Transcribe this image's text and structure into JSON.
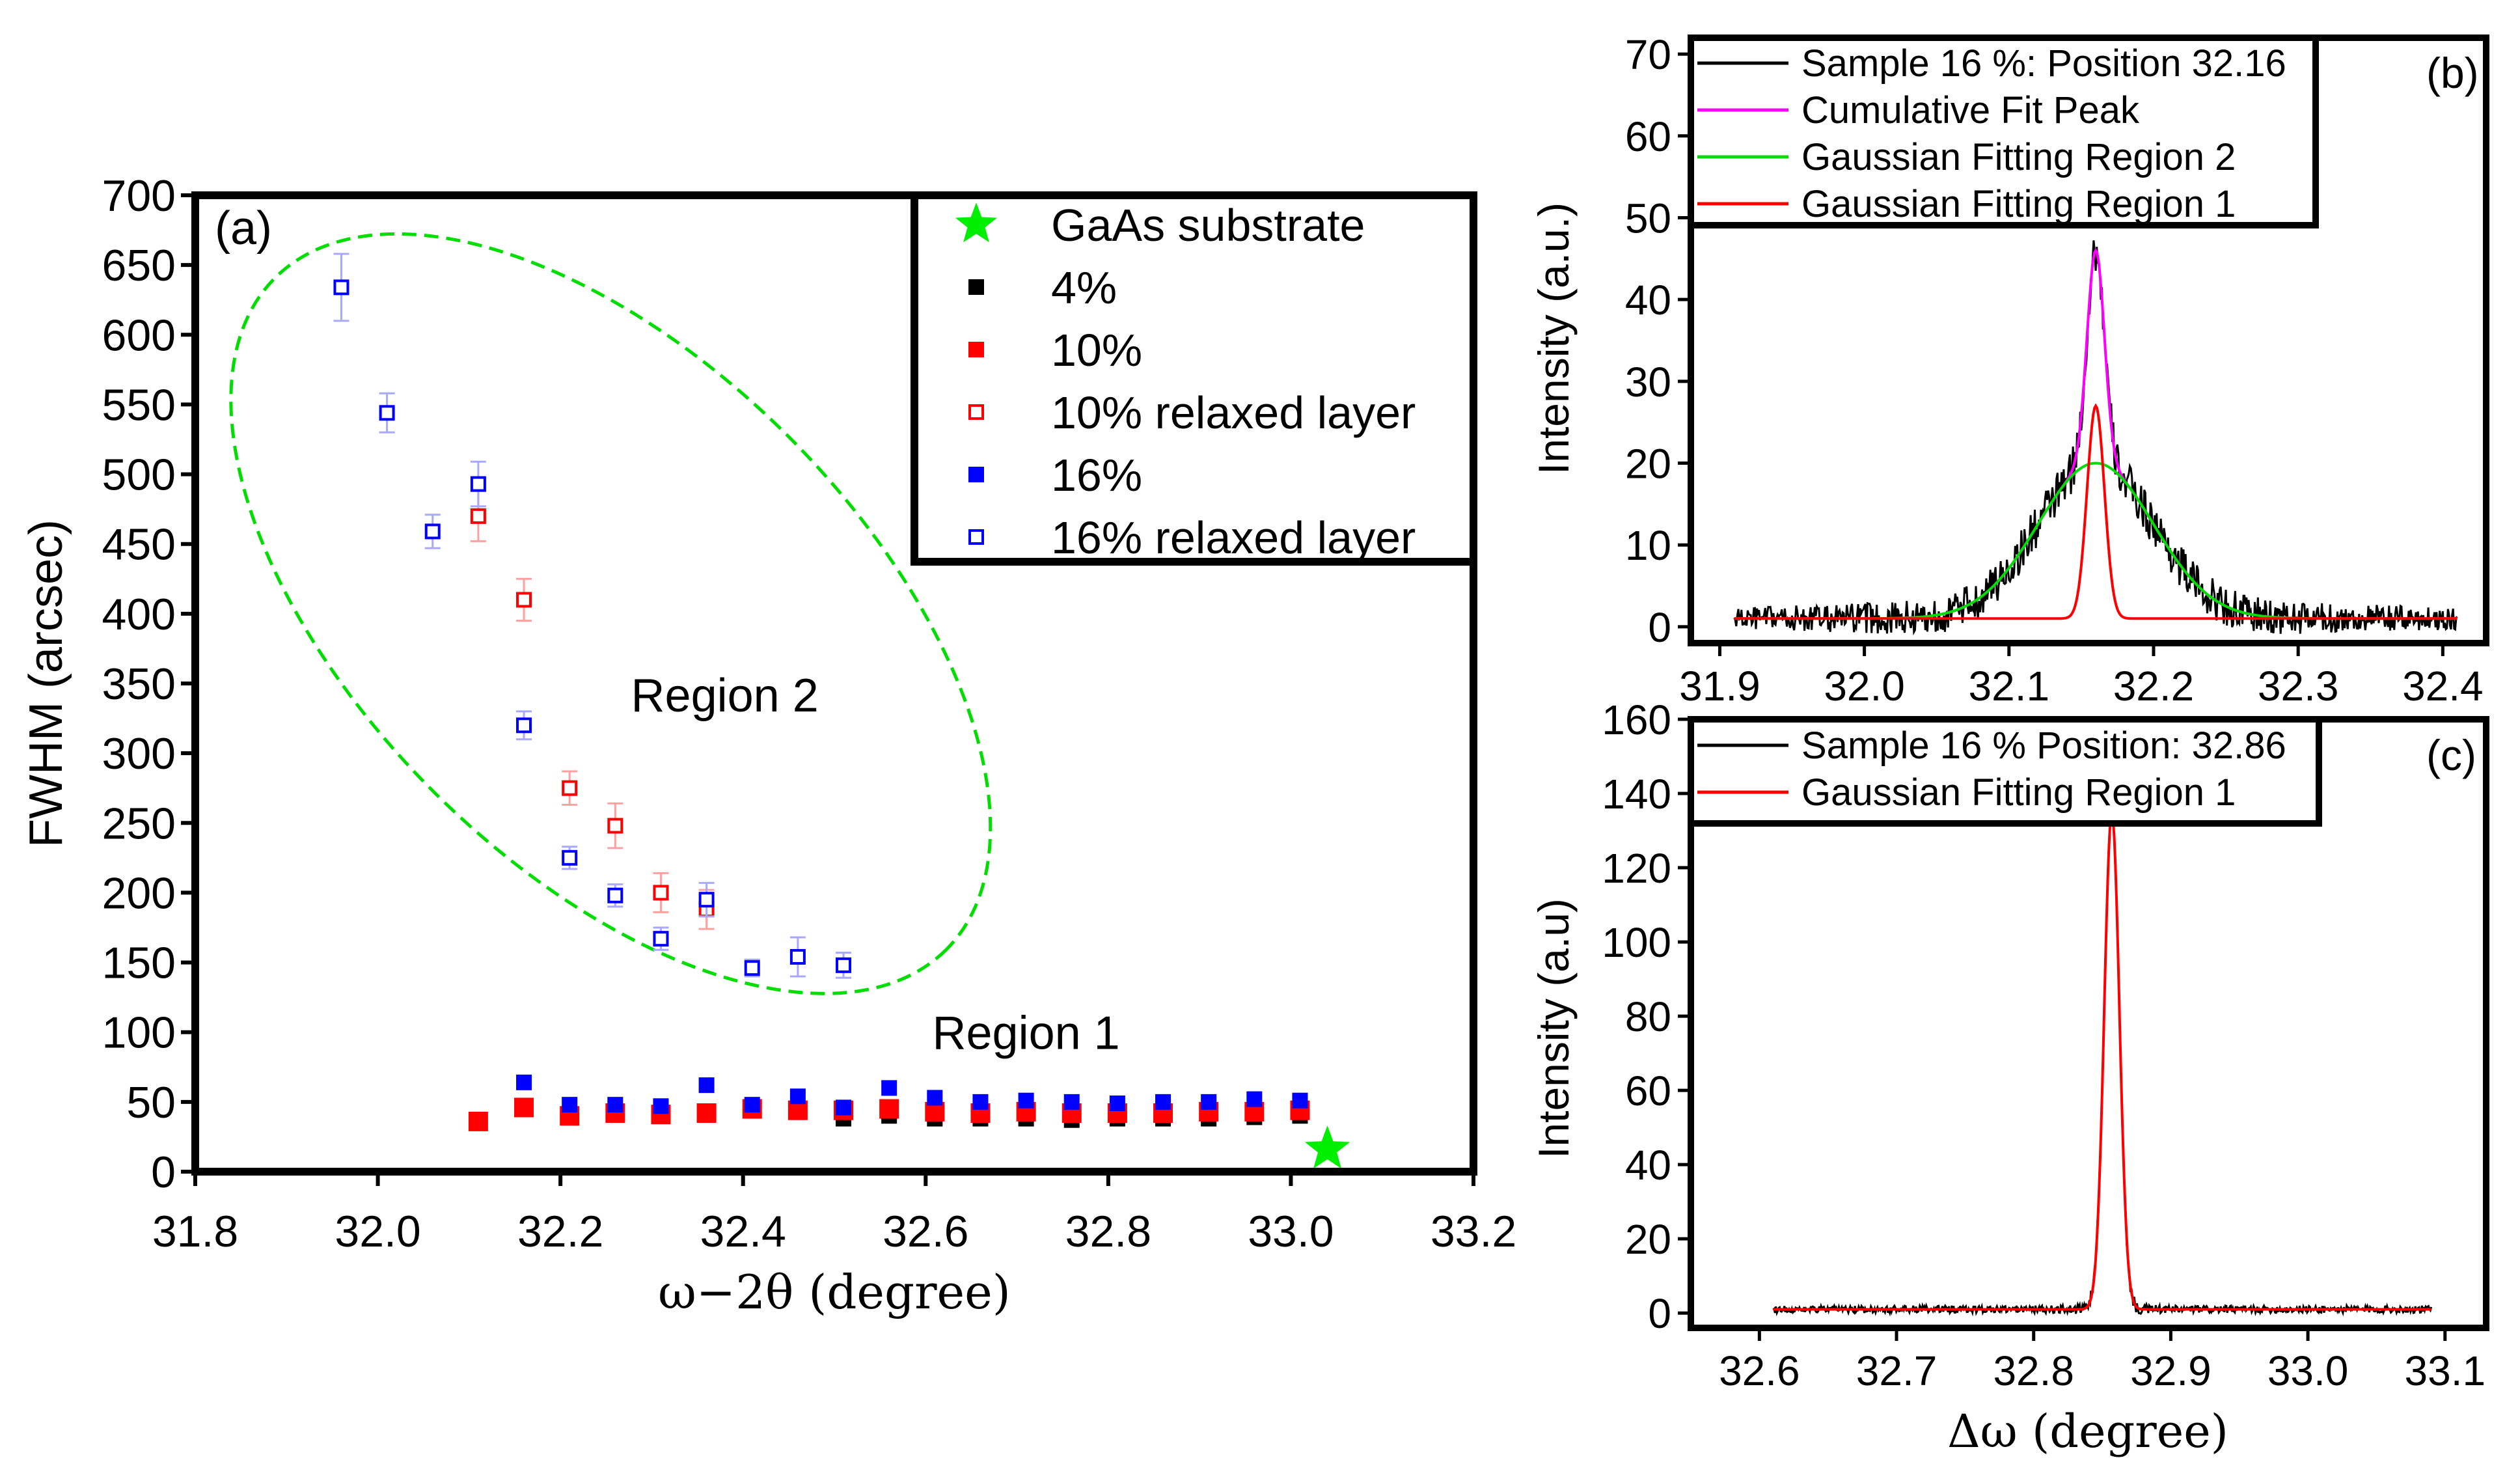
{
  "colors": {
    "black": "#000000",
    "red": "#ff0000",
    "blue": "#0000ff",
    "green": "#00ff00",
    "magenta": "#ff00ff",
    "dashed_green": "#00dd00"
  },
  "chart_data": [
    {
      "id": "a",
      "type": "scatter",
      "panel_label": "(a)",
      "xlabel": "ω−2θ (degree)",
      "ylabel": "FWHM (arcsec)",
      "xlim": [
        31.8,
        33.2
      ],
      "ylim": [
        0,
        700
      ],
      "x_ticks": [
        31.8,
        32.0,
        32.2,
        32.4,
        32.6,
        32.8,
        33.0,
        33.2
      ],
      "x_tick_labels": [
        "31.8",
        "32.0",
        "32.2",
        "32.4",
        "32.6",
        "32.8",
        "33.0",
        "33.2"
      ],
      "y_ticks": [
        0,
        50,
        100,
        150,
        200,
        250,
        300,
        350,
        400,
        450,
        500,
        550,
        600,
        650,
        700
      ],
      "y_tick_labels": [
        "0",
        "50",
        "100",
        "150",
        "200",
        "250",
        "300",
        "350",
        "400",
        "450",
        "500",
        "550",
        "600",
        "650",
        "700"
      ],
      "annotations": [
        {
          "text": "Region 2",
          "x": 32.38,
          "y": 330
        },
        {
          "text": "Region 1",
          "x": 32.71,
          "y": 88
        }
      ],
      "region2_ellipse": {
        "cx": 32.255,
        "cy": 400,
        "rx_deg": 0.52,
        "ry_arcsec": 180,
        "rotation_deg": 45
      },
      "legend_title": "",
      "series": [
        {
          "name": "GaAs substrate",
          "marker": "star",
          "color": "#00ee00",
          "x": [
            33.04
          ],
          "y": [
            16
          ],
          "err": [
            0
          ]
        },
        {
          "name": "4%",
          "marker": "square-filled",
          "color": "#000000",
          "x": [
            32.51,
            32.56,
            32.61,
            32.66,
            32.71,
            32.76,
            32.81,
            32.86,
            32.91,
            32.96,
            33.01
          ],
          "y": [
            38,
            40,
            38,
            38,
            38,
            37,
            38,
            38,
            38,
            39,
            40
          ],
          "err": [
            0,
            0,
            0,
            0,
            0,
            0,
            0,
            0,
            0,
            0,
            0
          ]
        },
        {
          "name": "10%",
          "marker": "square-filled",
          "color": "#ff0000",
          "x": [
            32.11,
            32.16,
            32.21,
            32.26,
            32.31,
            32.36,
            32.41,
            32.46,
            32.51,
            32.56,
            32.61,
            32.66,
            32.71,
            32.76,
            32.81,
            32.86,
            32.91,
            32.96,
            33.01
          ],
          "y": [
            36,
            46,
            40,
            42,
            41,
            42,
            45,
            44,
            44,
            45,
            43,
            42,
            43,
            42,
            42,
            42,
            43,
            43,
            44
          ],
          "err": [
            0,
            0,
            0,
            0,
            0,
            0,
            0,
            0,
            0,
            0,
            0,
            0,
            0,
            0,
            0,
            0,
            0,
            0,
            0
          ]
        },
        {
          "name": "10% relaxed layer",
          "marker": "square-open",
          "color": "#ff0000",
          "x": [
            32.11,
            32.16,
            32.21,
            32.26,
            32.31,
            32.36
          ],
          "y": [
            470,
            410,
            275,
            248,
            200,
            188
          ],
          "err": [
            18,
            15,
            12,
            16,
            14,
            14
          ]
        },
        {
          "name": "16%",
          "marker": "square-filled",
          "color": "#0000ff",
          "x": [
            32.16,
            32.21,
            32.26,
            32.31,
            32.36,
            32.41,
            32.46,
            32.51,
            32.56,
            32.61,
            32.66,
            32.71,
            32.76,
            32.81,
            32.86,
            32.91,
            32.96,
            33.01
          ],
          "y": [
            64,
            48,
            48,
            47,
            62,
            48,
            54,
            46,
            60,
            53,
            50,
            51,
            50,
            49,
            50,
            50,
            52,
            51
          ],
          "err": [
            0,
            0,
            0,
            0,
            0,
            0,
            0,
            0,
            0,
            0,
            0,
            0,
            0,
            0,
            0,
            0,
            0,
            0
          ]
        },
        {
          "name": "16% relaxed layer",
          "marker": "square-open",
          "color": "#0000ff",
          "x": [
            31.96,
            32.01,
            32.06,
            32.11,
            32.16,
            32.21,
            32.26,
            32.31,
            32.36,
            32.41,
            32.46,
            32.51
          ],
          "y": [
            634,
            544,
            459,
            493,
            320,
            225,
            198,
            167,
            195,
            146,
            154,
            148
          ],
          "err": [
            24,
            14,
            12,
            16,
            10,
            8,
            8,
            8,
            12,
            6,
            14,
            9
          ]
        }
      ]
    },
    {
      "id": "b",
      "type": "line",
      "panel_label": "(b)",
      "xlabel": "",
      "ylabel": "Intensity (a.u.)",
      "xlim": [
        31.88,
        32.43
      ],
      "ylim": [
        -2,
        72
      ],
      "x_ticks": [
        31.9,
        32.0,
        32.1,
        32.2,
        32.3,
        32.4
      ],
      "x_tick_labels": [
        "31.9",
        "32.0",
        "32.1",
        "32.2",
        "32.3",
        "32.4"
      ],
      "y_ticks": [
        0,
        10,
        20,
        30,
        40,
        50,
        60,
        70
      ],
      "y_tick_labels": [
        "0",
        "10",
        "20",
        "30",
        "40",
        "50",
        "60",
        "70"
      ],
      "series": [
        {
          "name": "Sample 16 %: Position 32.16",
          "color": "#000000",
          "kind": "noisy",
          "x_range": [
            31.91,
            32.41
          ],
          "baseline": 1,
          "peaks": [
            {
              "center": 32.16,
              "sigma": 0.04,
              "amp": 19
            },
            {
              "center": 32.16,
              "sigma": 0.006,
              "amp": 26
            }
          ],
          "noise": 2.5
        },
        {
          "name": "Cumulative Fit Peak",
          "color": "#ff00ff",
          "kind": "model",
          "x_range": [
            31.91,
            32.41
          ],
          "baseline": 1,
          "peaks": [
            {
              "center": 32.16,
              "sigma": 0.04,
              "amp": 19
            },
            {
              "center": 32.16,
              "sigma": 0.006,
              "amp": 26
            }
          ]
        },
        {
          "name": "Gaussian Fitting Region 2",
          "color": "#00dd00",
          "kind": "model",
          "x_range": [
            31.91,
            32.41
          ],
          "baseline": 1,
          "peaks": [
            {
              "center": 32.16,
              "sigma": 0.04,
              "amp": 19
            }
          ]
        },
        {
          "name": "Gaussian Fitting Region 1",
          "color": "#ff0000",
          "kind": "model",
          "x_range": [
            31.91,
            32.41
          ],
          "baseline": 1,
          "peaks": [
            {
              "center": 32.16,
              "sigma": 0.006,
              "amp": 26
            }
          ]
        }
      ]
    },
    {
      "id": "c",
      "type": "line",
      "panel_label": "(c)",
      "xlabel": "Δω (degree)",
      "ylabel": "Intensity (a.u)",
      "xlim": [
        32.55,
        33.13
      ],
      "ylim": [
        -4,
        160
      ],
      "x_ticks": [
        32.6,
        32.7,
        32.8,
        32.9,
        33.0,
        33.1
      ],
      "x_tick_labels": [
        "32.6",
        "32.7",
        "32.8",
        "32.9",
        "33.0",
        "33.1"
      ],
      "y_ticks": [
        0,
        20,
        40,
        60,
        80,
        100,
        120,
        140,
        160
      ],
      "y_tick_labels": [
        "0",
        "20",
        "40",
        "60",
        "80",
        "100",
        "120",
        "140",
        "160"
      ],
      "series": [
        {
          "name": "Sample 16 % Position: 32.86",
          "color": "#000000",
          "kind": "noisy",
          "x_range": [
            32.61,
            33.09
          ],
          "baseline": 1,
          "peaks": [
            {
              "center": 32.857,
              "sigma": 0.0055,
              "amp": 134
            }
          ],
          "noise": 2
        },
        {
          "name": "Gaussian Fitting Region 1",
          "color": "#ff0000",
          "kind": "model",
          "x_range": [
            32.61,
            33.09
          ],
          "baseline": 1,
          "peaks": [
            {
              "center": 32.857,
              "sigma": 0.0055,
              "amp": 134
            }
          ]
        }
      ]
    }
  ]
}
